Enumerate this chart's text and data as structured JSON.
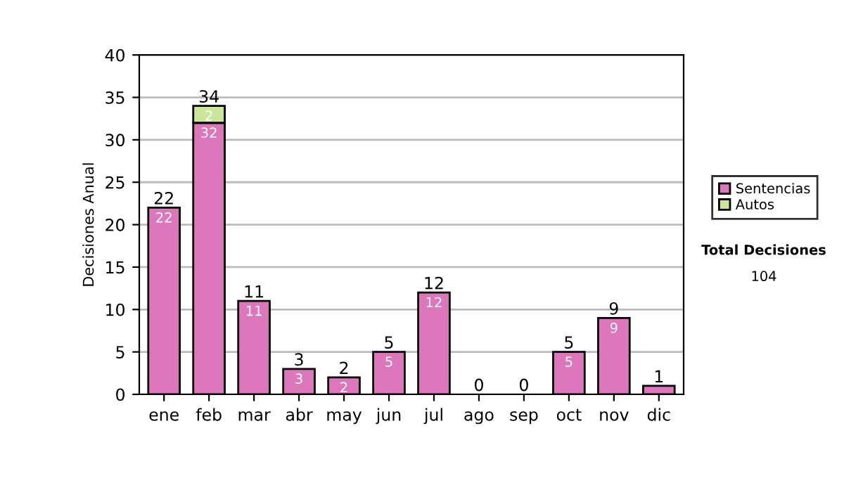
{
  "chart_data": {
    "type": "bar",
    "stacked": true,
    "ylabel": "Decisiones Anual",
    "categories": [
      "ene",
      "feb",
      "mar",
      "abr",
      "may",
      "jun",
      "jul",
      "ago",
      "sep",
      "oct",
      "nov",
      "dic"
    ],
    "series": [
      {
        "name": "Sentencias",
        "color": "#dd77bb",
        "values": [
          22,
          32,
          11,
          3,
          2,
          5,
          12,
          0,
          0,
          5,
          9,
          1
        ],
        "value_labels": [
          "22",
          "32",
          "11",
          "3",
          "2",
          "5",
          "12",
          null,
          null,
          "5",
          "9",
          null
        ]
      },
      {
        "name": "Autos",
        "color": "#cce699",
        "values": [
          0,
          2,
          0,
          0,
          0,
          0,
          0,
          0,
          0,
          0,
          0,
          0
        ],
        "value_labels": [
          null,
          "2",
          null,
          null,
          null,
          null,
          null,
          null,
          null,
          null,
          null,
          null
        ]
      }
    ],
    "totals": [
      "22",
      "34",
      "11",
      "3",
      "2",
      "5",
      "12",
      "0",
      "0",
      "5",
      "9",
      "1"
    ],
    "ylim": [
      0,
      40
    ],
    "yticks": [
      0,
      5,
      10,
      15,
      20,
      25,
      30,
      35,
      40
    ],
    "grid": "y",
    "legend": "right",
    "annotations": [
      "Total Decisiones",
      "104"
    ]
  }
}
